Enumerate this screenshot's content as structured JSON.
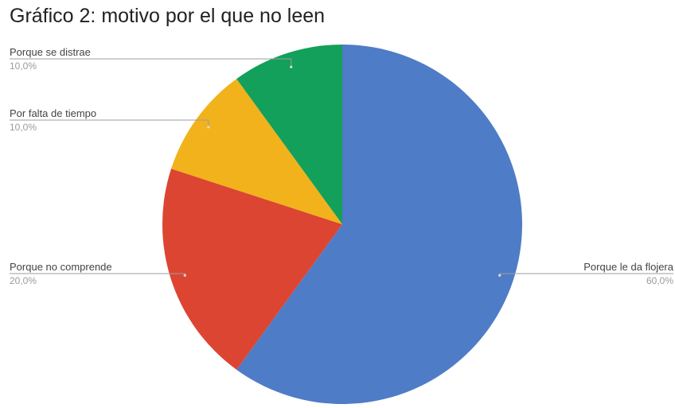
{
  "chart_data": {
    "type": "pie",
    "title": "Gráfico 2: motivo por el que no leen",
    "slices": [
      {
        "label": "Porque le da flojera",
        "value": 60.0,
        "percent_text": "60,0%",
        "color": "#4f7cc6"
      },
      {
        "label": "Porque no comprende",
        "value": 20.0,
        "percent_text": "20,0%",
        "color": "#dc4532"
      },
      {
        "label": "Por falta de tiempo",
        "value": 10.0,
        "percent_text": "10,0%",
        "color": "#f2b21b"
      },
      {
        "label": "Porque se distrae",
        "value": 10.0,
        "percent_text": "10,0%",
        "color": "#12a05a"
      }
    ],
    "start_angle": "12 o'clock",
    "direction": "clockwise",
    "label_style": "outside labels with leader lines"
  }
}
